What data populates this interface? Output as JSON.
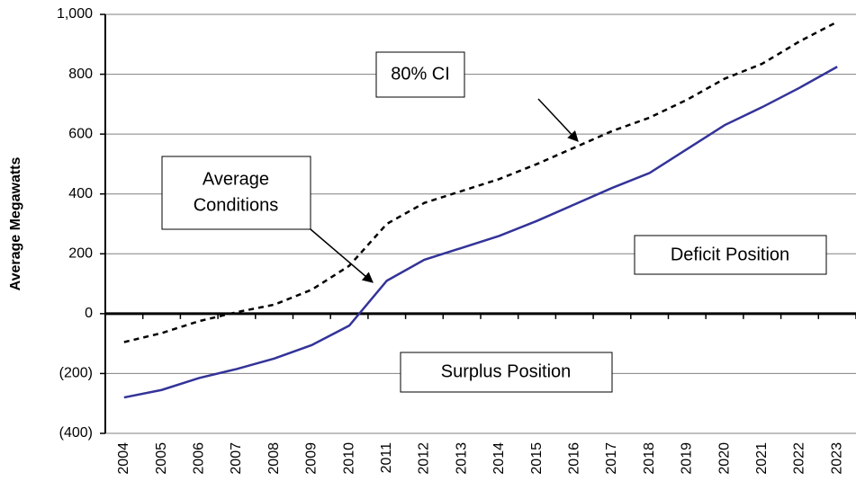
{
  "chart_data": {
    "type": "line",
    "y_label": "Average Megawatts",
    "categories": [
      "2004",
      "2005",
      "2006",
      "2007",
      "2008",
      "2009",
      "2010",
      "2011",
      "2012",
      "2013",
      "2014",
      "2015",
      "2016",
      "2017",
      "2018",
      "2019",
      "2020",
      "2021",
      "2022",
      "2023"
    ],
    "series": [
      {
        "color": "#333399",
        "dash": false,
        "values": [
          -280,
          -255,
          -215,
          -185,
          -150,
          -105,
          -40,
          110,
          180,
          220,
          260,
          310,
          365,
          420,
          470,
          550,
          630,
          690,
          755,
          825
        ]
      },
      {
        "color": "#000000",
        "dash": true,
        "values": [
          -95,
          -65,
          -25,
          5,
          30,
          80,
          160,
          300,
          370,
          410,
          450,
          500,
          555,
          610,
          655,
          715,
          785,
          835,
          910,
          975
        ]
      }
    ],
    "ylim": [
      -400,
      1000
    ],
    "yticks": [
      {
        "value": -400,
        "label": "(400)"
      },
      {
        "value": -200,
        "label": "(200)"
      },
      0,
      200,
      400,
      600,
      800,
      {
        "value": 1000,
        "label": "1,000"
      }
    ],
    "grid": true,
    "annotations": [
      {
        "lines": [
          "80% CI"
        ]
      },
      {
        "lines": [
          "Average",
          "Conditions"
        ]
      },
      {
        "lines": [
          "Deficit Position"
        ]
      },
      {
        "lines": [
          "Surplus Position"
        ]
      }
    ]
  }
}
